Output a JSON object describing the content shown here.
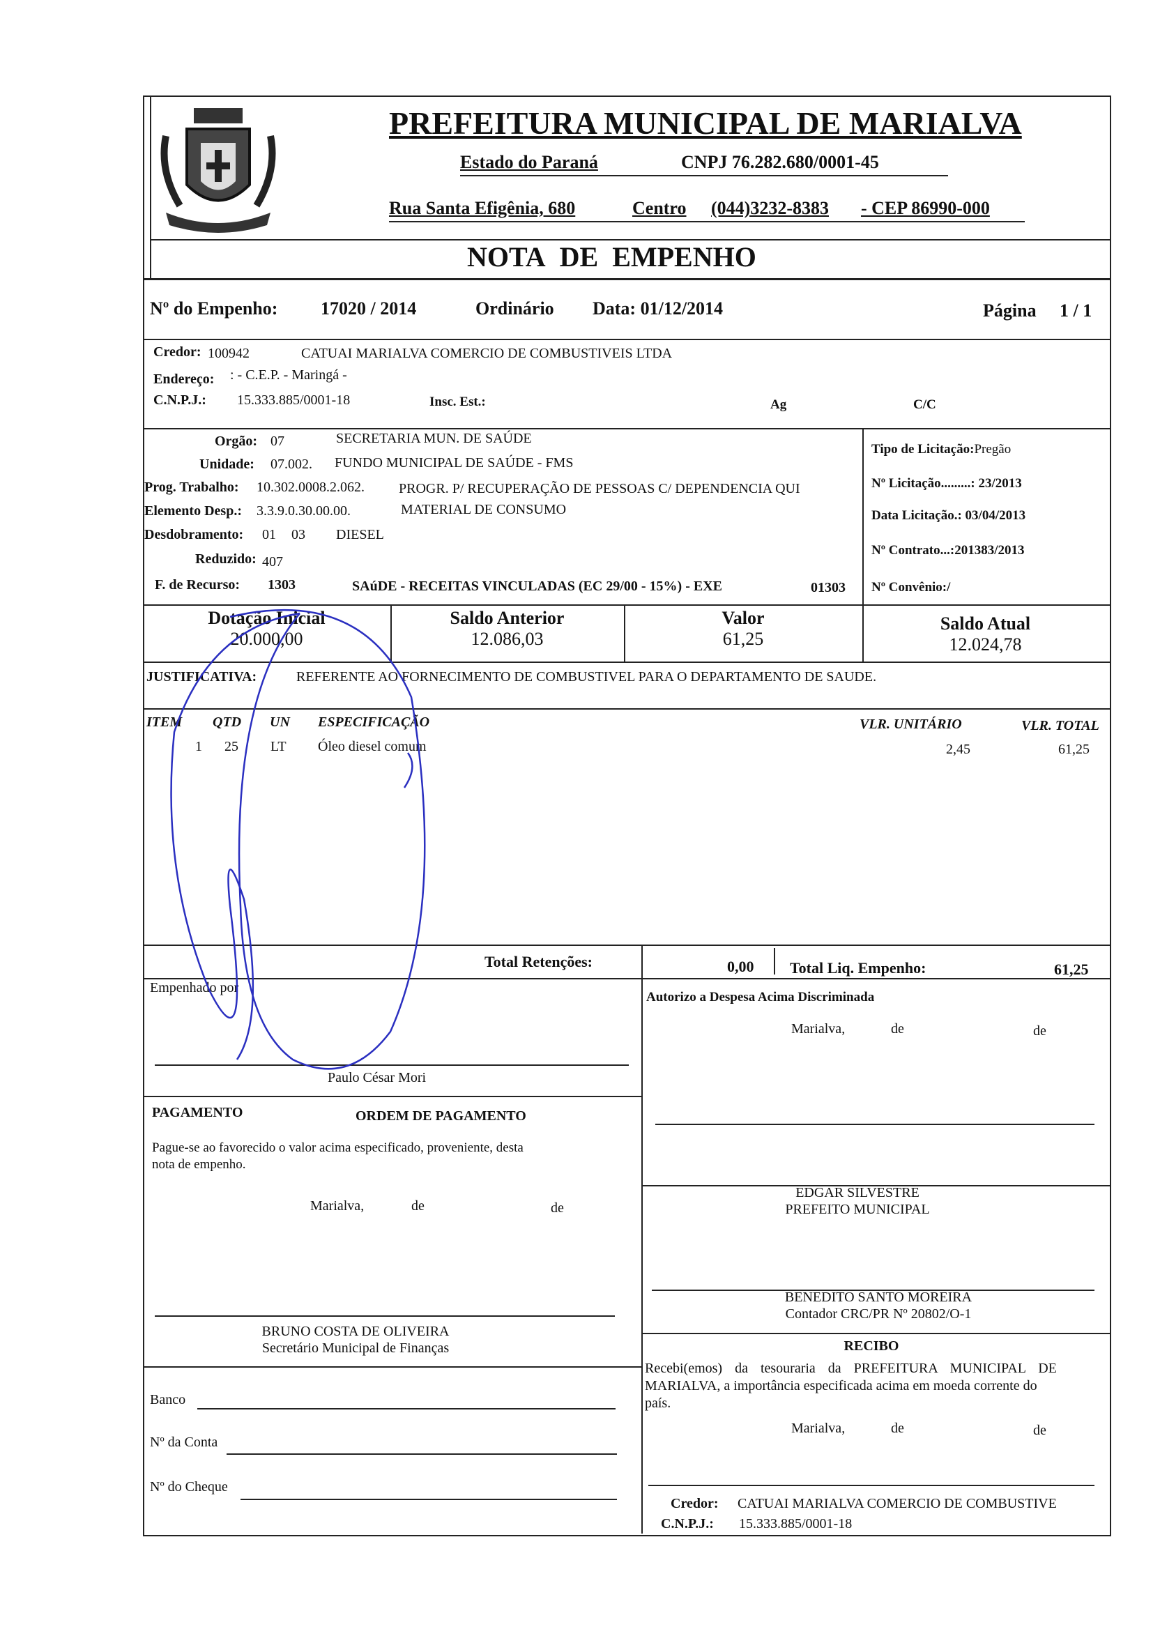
{
  "header": {
    "title": "PREFEITURA MUNICIPAL DE MARIALVA",
    "state": "Estado do Paraná",
    "cnpj": "CNPJ 76.282.680/0001-45",
    "address": "Rua Santa Efigênia, 680",
    "district": "Centro",
    "phone": "(044)3232-8383",
    "cep": "-  CEP 86990-000",
    "logo": "municipal-coat-of-arms"
  },
  "doc_title": {
    "w1": "NOTA",
    "w2": "DE",
    "w3": "EMPENHO"
  },
  "empenho": {
    "label": "Nº do Empenho:",
    "number": "17020 / 2014",
    "type": "Ordinário",
    "date": "Data: 01/12/2014",
    "page_label": "Página",
    "page": "1 / 1"
  },
  "credor": {
    "label": "Credor:",
    "code": "100942",
    "name": "CATUAI MARIALVA COMERCIO DE COMBUSTIVEIS LTDA",
    "address_label": "Endereço:",
    "address": ":  -  C.E.P.  -  Maringá  -",
    "cnpj_label": "C.N.P.J.:",
    "cnpj": "15.333.885/0001-18",
    "insc_label": "Insc. Est.:",
    "ag_label": "Ag",
    "cc_label": "C/C"
  },
  "budget": {
    "orgao": {
      "label": "Orgão:",
      "code": "07",
      "desc": "SECRETARIA MUN. DE SAÚDE"
    },
    "unidade": {
      "label": "Unidade:",
      "code": "07.002.",
      "desc": "FUNDO MUNICIPAL DE SAÚDE - FMS"
    },
    "prog": {
      "label": "Prog. Trabalho:",
      "code": "10.302.0008.2.062.",
      "desc": "PROGR. P/ RECUPERAÇÃO DE PESSOAS C/ DEPENDENCIA QUI"
    },
    "elemento": {
      "label": "Elemento Desp.:",
      "code": "3.3.9.0.30.00.00.",
      "desc": "MATERIAL DE CONSUMO"
    },
    "desdobramento": {
      "label": "Desdobramento:",
      "c1": "01",
      "c2": "03",
      "desc": "DIESEL"
    },
    "reduzido": {
      "label": "Reduzido:",
      "code": "407"
    },
    "recurso": {
      "label": "F. de Recurso:",
      "code": "1303",
      "desc": "SAúDE - RECEITAS VINCULADAS (EC 29/00 - 15%) - EXE",
      "code2": "01303"
    }
  },
  "licitacao": {
    "tipo": "Tipo de Licitação:",
    "tipo_val": "Pregão",
    "num": "Nº Licitação.........: 23/2013",
    "data": "Data Licitação.: 03/04/2013",
    "contrato": "Nº Contrato...:201383/2013",
    "convenio": "Nº Convênio:/"
  },
  "values": {
    "dotacao_label": "Dotação Inicial",
    "dotacao": "20.000,00",
    "saldo_ant_label": "Saldo Anterior",
    "saldo_ant": "12.086,03",
    "valor_label": "Valor",
    "valor": "61,25",
    "saldo_atual_label": "Saldo Atual",
    "saldo_atual": "12.024,78"
  },
  "justificativa": {
    "label": "JUSTIFICATIVA:",
    "text": "REFERENTE AO FORNECIMENTO DE COMBUSTIVEL PARA O DEPARTAMENTO DE SAUDE."
  },
  "items": {
    "headers": [
      "ITEM",
      "QTD",
      "UN",
      "ESPECIFICAÇÃO",
      "VLR. UNITÁRIO",
      "VLR. TOTAL"
    ],
    "rows": [
      {
        "item": "1",
        "qtd": "25",
        "un": "LT",
        "spec": "Óleo diesel comum",
        "unit": "2,45",
        "total": "61,25"
      }
    ]
  },
  "totals": {
    "ret_label": "Total Retenções:",
    "ret": "0,00",
    "liq_label": "Total Liq. Empenho:",
    "liq": "61,25"
  },
  "empenhado": {
    "label": "Empenhado por",
    "name": "Paulo César Mori"
  },
  "autorizo": {
    "label": "Autorizo a Despesa Acima Discriminada",
    "place": "Marialva,",
    "de1": "de",
    "de2": "de"
  },
  "pagamento": {
    "label": "PAGAMENTO",
    "title": "ORDEM DE PAGAMENTO",
    "line1": "Pague-se ao favorecido o valor acima especificado, proveniente, desta",
    "line2": "nota de empenho.",
    "place": "Marialva,",
    "de1": "de",
    "de2": "de"
  },
  "prefeito": {
    "name": "EDGAR SILVESTRE",
    "role": "PREFEITO MUNICIPAL"
  },
  "contador": {
    "name": "BENEDITO SANTO MOREIRA",
    "role": "Contador CRC/PR Nº 20802/O-1"
  },
  "secretario": {
    "name": "BRUNO COSTA DE OLIVEIRA",
    "role": "Secretário Municipal de Finanças"
  },
  "bank": {
    "banco": "Banco",
    "conta": "Nº da Conta",
    "cheque": "Nº do Cheque"
  },
  "recibo": {
    "title": "RECIBO",
    "line1": "Recebi(emos)  da  tesouraria  da  PREFEITURA  MUNICIPAL  DE",
    "line2": "MARIALVA, a importância especificada acima em moeda corrente do",
    "line3": "país.",
    "place": "Marialva,",
    "de1": "de",
    "de2": "de",
    "credor_label": "Credor:",
    "credor": "CATUAI MARIALVA COMERCIO DE COMBUSTIVE",
    "cnpj_label": "C.N.P.J.:",
    "cnpj": "15.333.885/0001-18"
  },
  "colors": {
    "ink": "#111111",
    "signature": "#2a2fc0"
  }
}
